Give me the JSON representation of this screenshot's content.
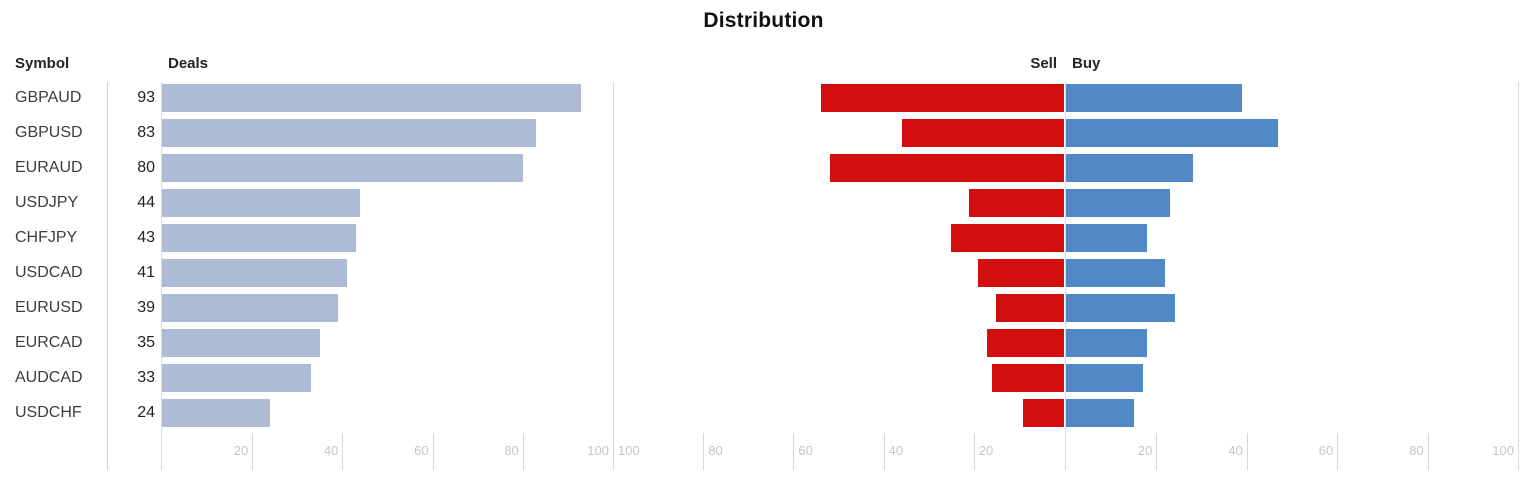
{
  "chart_data": {
    "type": "bar",
    "orientation": "horizontal",
    "title": "Distribution",
    "column_headers": {
      "symbol": "Symbol",
      "deals": "Deals",
      "sell": "Sell",
      "buy": "Buy"
    },
    "categories": [
      "GBPAUD",
      "GBPUSD",
      "EURAUD",
      "USDJPY",
      "CHFJPY",
      "USDCAD",
      "EURUSD",
      "EURCAD",
      "AUDCAD",
      "USDCHF"
    ],
    "series": [
      {
        "name": "Deals",
        "color": "#aebbd4",
        "values": [
          93,
          83,
          80,
          44,
          43,
          41,
          39,
          35,
          33,
          24
        ]
      },
      {
        "name": "Sell",
        "color": "#d20e0e",
        "values": [
          54,
          36,
          52,
          21,
          25,
          19,
          15,
          17,
          16,
          9
        ]
      },
      {
        "name": "Buy",
        "color": "#5189c7",
        "values": [
          39,
          47,
          28,
          23,
          18,
          22,
          24,
          18,
          17,
          15
        ]
      }
    ],
    "axis": {
      "range": [
        0,
        100
      ],
      "deals_ticks": [
        20,
        40,
        60,
        80,
        100
      ],
      "sell_ticks": [
        100,
        80,
        60,
        40,
        20
      ],
      "buy_ticks": [
        20,
        40,
        60,
        80,
        100
      ]
    },
    "legend_position": "none",
    "grid": "bottom ticks plus full-height lines at axis zero/boundaries"
  },
  "colors": {
    "deals_bar": "#aebbd4",
    "sell_bar": "#d20e0e",
    "buy_bar": "#5189c7",
    "grid_line": "#d9d9d9",
    "separator_line": "#d0d0d0",
    "tick_label": "#c5c5c5",
    "header_text": "#242424",
    "symbol_text": "#3d3d3d"
  }
}
